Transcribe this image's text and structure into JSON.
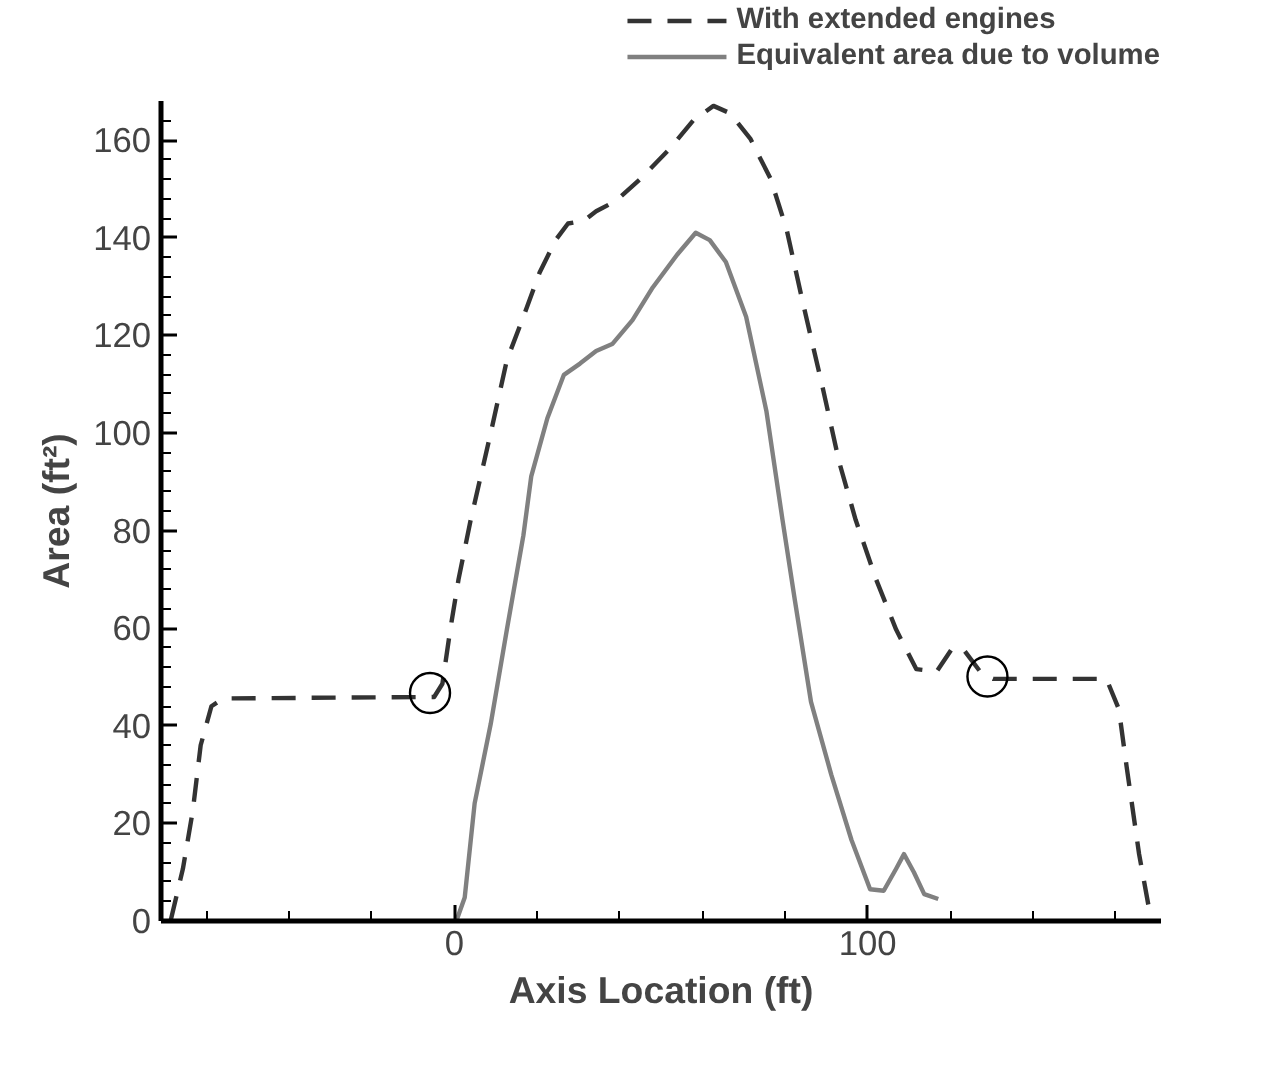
{
  "chart_data": {
    "type": "line",
    "xlabel": "Axis Location (ft)",
    "ylabel": "Area (ft²)",
    "xlim": [
      -71,
      171
    ],
    "ylim": [
      0,
      168
    ],
    "xticks": [
      {
        "value": -60,
        "label": null
      },
      {
        "value": -40,
        "label": null
      },
      {
        "value": -20,
        "label": null
      },
      0,
      {
        "value": 20,
        "label": null
      },
      {
        "value": 40,
        "label": null
      },
      {
        "value": 60,
        "label": null
      },
      {
        "value": 80,
        "label": null
      },
      100,
      {
        "value": 120,
        "label": null
      },
      {
        "value": 140,
        "label": null
      },
      {
        "value": 160,
        "label": null
      }
    ],
    "yticks": [
      0,
      {
        "value": 4,
        "label": null
      },
      {
        "value": 8,
        "label": null
      },
      {
        "value": 12,
        "label": null
      },
      {
        "value": 16,
        "label": null
      },
      20,
      {
        "value": 24,
        "label": null
      },
      {
        "value": 28,
        "label": null
      },
      {
        "value": 32,
        "label": null
      },
      {
        "value": 36,
        "label": null
      },
      40,
      {
        "value": 44,
        "label": null
      },
      {
        "value": 48,
        "label": null
      },
      {
        "value": 52,
        "label": null
      },
      {
        "value": 56,
        "label": null
      },
      60,
      {
        "value": 64,
        "label": null
      },
      {
        "value": 68,
        "label": null
      },
      {
        "value": 72,
        "label": null
      },
      {
        "value": 76,
        "label": null
      },
      80,
      {
        "value": 84,
        "label": null
      },
      {
        "value": 88,
        "label": null
      },
      {
        "value": 92,
        "label": null
      },
      {
        "value": 96,
        "label": null
      },
      100,
      {
        "value": 104,
        "label": null
      },
      {
        "value": 108,
        "label": null
      },
      {
        "value": 112,
        "label": null
      },
      {
        "value": 116,
        "label": null
      },
      120,
      {
        "value": 124,
        "label": null
      },
      {
        "value": 128,
        "label": null
      },
      {
        "value": 132,
        "label": null
      },
      {
        "value": 136,
        "label": null
      },
      140,
      {
        "value": 144,
        "label": null
      },
      {
        "value": 148,
        "label": null
      },
      {
        "value": 152,
        "label": null
      },
      {
        "value": 156,
        "label": null
      },
      160,
      {
        "value": 164,
        "label": null
      }
    ],
    "grid": false,
    "legend": "top right",
    "series": [
      {
        "name": "With extended engines",
        "color": "#333333",
        "line_style": "dashed",
        "x": [
          -68.6,
          -65.7,
          -63.3,
          -61.4,
          -58.8,
          -55.9,
          -4.9,
          -2.9,
          -1,
          1,
          3.9,
          8.8,
          12.7,
          16.7,
          20.6,
          24.5,
          27.5,
          31.4,
          34.3,
          39.2,
          45.1,
          52,
          57.8,
          62.7,
          66.7,
          71.6,
          76.5,
          80.4,
          84.3,
          89.2,
          93.1,
          97.1,
          102,
          106.9,
          111.8,
          116.7,
          120.6,
          123.5,
          127.5,
          130.4,
          157.8,
          160.8,
          162.7,
          165.7,
          168.2
        ],
        "values": [
          0.3,
          10.7,
          22.6,
          36,
          44,
          45.6,
          45.9,
          48.6,
          59.7,
          70,
          82,
          100,
          114.9,
          123.8,
          132.8,
          139.5,
          142.9,
          143.5,
          145.4,
          147.6,
          152.1,
          158.1,
          164,
          167,
          165.5,
          160.3,
          152.1,
          141.7,
          126.8,
          109,
          94.1,
          82.2,
          70.1,
          59.7,
          51.6,
          51.1,
          56,
          55.3,
          50.8,
          49.6,
          49.6,
          43.4,
          31.5,
          13.7,
          2.1
        ]
      },
      {
        "name": "Equivalent area due to volume",
        "color": "#808080",
        "line_style": "solid",
        "x": [
          0.6,
          2.5,
          4.9,
          8.8,
          12.7,
          16.7,
          18.6,
          22.5,
          26.5,
          30.4,
          34.3,
          38.2,
          43.1,
          48,
          53.9,
          58.4,
          61.8,
          65.7,
          70.6,
          75.5,
          79.4,
          82.4,
          86.3,
          91.2,
          96.1,
          100.6,
          103.9,
          106.9,
          108.8,
          111.2,
          113.7,
          117.1
        ],
        "values": [
          0.3,
          4.8,
          24.1,
          40.4,
          59.7,
          79,
          91.1,
          103,
          111.9,
          114.2,
          116.8,
          118.2,
          123.1,
          129.8,
          136.5,
          141,
          139.5,
          135,
          123.8,
          104.5,
          82.2,
          65.7,
          44.9,
          30,
          16.6,
          6.5,
          6.2,
          10.7,
          13.7,
          10,
          5.5,
          4.5
        ]
      },
      {
        "type": "scatter",
        "color": "#000000",
        "marker": "circle",
        "x": [
          -5.9,
          129
        ],
        "values": [
          46.7,
          50.1
        ]
      }
    ]
  }
}
